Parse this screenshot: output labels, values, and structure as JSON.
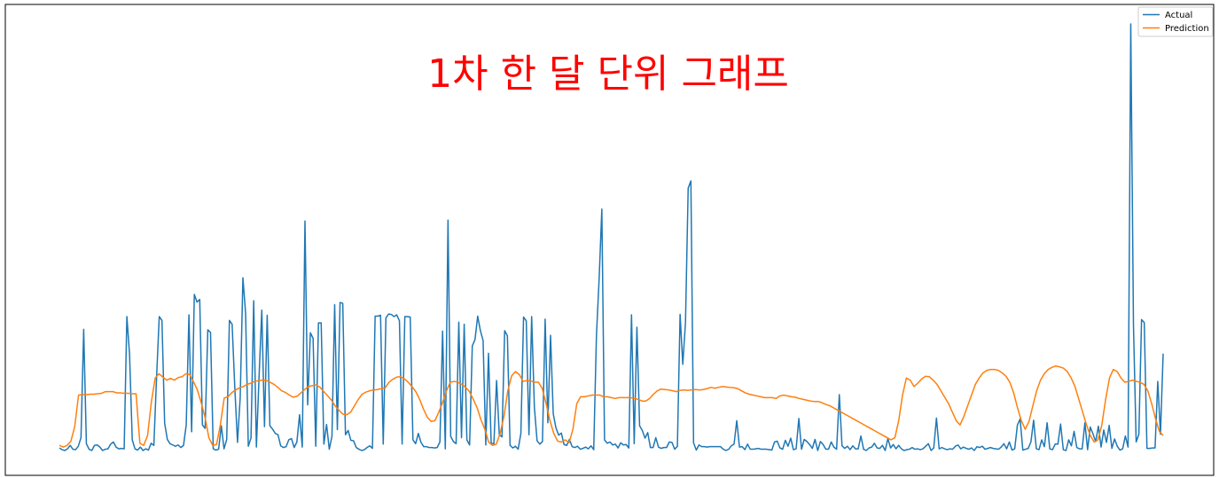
{
  "chart_data": {
    "type": "line",
    "title": "1차 한 달 단위 그래프",
    "xlabel": "",
    "ylabel": "",
    "grid": false,
    "legend_position": "top-right",
    "xlim": [
      0,
      320
    ],
    "ylim": [
      0,
      1.0
    ],
    "series": [
      {
        "name": "Actual",
        "color": "#1f77b4",
        "values": [
          0.006,
          0.002,
          0.0,
          0.004,
          0.012,
          0.003,
          0.002,
          0.01,
          0.03,
          0.284,
          0.016,
          0.003,
          0.0,
          0.012,
          0.013,
          0.008,
          0.0,
          0.003,
          0.004,
          0.015,
          0.02,
          0.008,
          0.004,
          0.005,
          0.004,
          0.314,
          0.225,
          0.025,
          0.004,
          0.001,
          0.008,
          0.0,
          0.004,
          0.001,
          0.017,
          0.012,
          0.17,
          0.314,
          0.305,
          0.064,
          0.026,
          0.016,
          0.013,
          0.01,
          0.013,
          0.007,
          0.012,
          0.06,
          0.318,
          0.044,
          0.366,
          0.348,
          0.354,
          0.06,
          0.052,
          0.283,
          0.277,
          0.004,
          0.001,
          0.003,
          0.058,
          0.004,
          0.026,
          0.305,
          0.296,
          0.147,
          0.019,
          0.124,
          0.405,
          0.321,
          0.01,
          0.029,
          0.351,
          0.008,
          0.175,
          0.329,
          0.056,
          0.317,
          0.058,
          0.05,
          0.04,
          0.037,
          0.011,
          0.007,
          0.009,
          0.025,
          0.028,
          0.007,
          0.02,
          0.084,
          0.008,
          0.538,
          0.107,
          0.276,
          0.263,
          0.01,
          0.299,
          0.299,
          0.015,
          0.061,
          0.003,
          0.033,
          0.342,
          0.049,
          0.347,
          0.345,
          0.037,
          0.047,
          0.024,
          0.023,
          0.007,
          0.003,
          0.0,
          0.002,
          0.007,
          0.011,
          0.005,
          0.315,
          0.315,
          0.317,
          0.015,
          0.311,
          0.32,
          0.319,
          0.314,
          0.318,
          0.304,
          0.015,
          0.314,
          0.314,
          0.313,
          0.025,
          0.016,
          0.04,
          0.019,
          0.009,
          0.009,
          0.007,
          0.007,
          0.006,
          0.007,
          0.02,
          0.28,
          0.004,
          0.54,
          0.033,
          0.021,
          0.016,
          0.301,
          0.03,
          0.296,
          0.025,
          0.013,
          0.245,
          0.26,
          0.315,
          0.281,
          0.258,
          0.013,
          0.228,
          0.017,
          0.016,
          0.164,
          0.037,
          0.032,
          0.281,
          0.269,
          0.012,
          0.006,
          0.01,
          0.003,
          0.04,
          0.313,
          0.304,
          0.037,
          0.314,
          0.102,
          0.023,
          0.015,
          0.021,
          0.308,
          0.065,
          0.27,
          0.086,
          0.053,
          0.036,
          0.041,
          0.014,
          0.012,
          0.026,
          0.009,
          0.007,
          0.01,
          0.003,
          0.005,
          0.008,
          0.004,
          0.011,
          0.002,
          0.269,
          0.402,
          0.566,
          0.025,
          0.017,
          0.02,
          0.013,
          0.015,
          0.006,
          0.018,
          0.013,
          0.014,
          0.006,
          0.318,
          0.016,
          0.289,
          0.058,
          0.047,
          0.029,
          0.042,
          0.007,
          0.007,
          0.03,
          0.008,
          0.005,
          0.007,
          0.007,
          0.02,
          0.019,
          0.003,
          0.01,
          0.319,
          0.202,
          0.3,
          0.615,
          0.632,
          0.018,
          0.001,
          0.013,
          0.009,
          0.009,
          0.008,
          0.009,
          0.009,
          0.009,
          0.009,
          0.009,
          0.003,
          0.0,
          0.003,
          0.011,
          0.015,
          0.07,
          0.008,
          0.009,
          0.002,
          0.015,
          0.003,
          0.003,
          0.004,
          0.005,
          0.003,
          0.003,
          0.003,
          0.002,
          0.001,
          0.02,
          0.022,
          0.006,
          0.003,
          0.024,
          0.01,
          0.029,
          0.002,
          0.004,
          0.075,
          0.003,
          0.026,
          0.021,
          0.014,
          0.005,
          0.026,
          0.0,
          0.021,
          0.014,
          0.003,
          0.003,
          0.02,
          0.008,
          0.003,
          0.131,
          0.011,
          0.005,
          0.01,
          0.002,
          0.011,
          0.004,
          0.004,
          0.034,
          0.003,
          0.0,
          0.006,
          0.008,
          0.017,
          0.006,
          0.005,
          0.012,
          0.0,
          0.028,
          0.006,
          0.014,
          0.004,
          0.012,
          0.004,
          0.0,
          0.002,
          0.003,
          0.007,
          0.003,
          0.004,
          0.002,
          0.004,
          0.01,
          0.016,
          0.0,
          0.006,
          0.076,
          0.004,
          0.007,
          0.004,
          0.002,
          0.004,
          0.003,
          0.01,
          0.013,
          0.004,
          0.008,
          0.005,
          0.003,
          0.006,
          0.0,
          0.009,
          0.007,
          0.01,
          0.003,
          0.005,
          0.007,
          0.005,
          0.004,
          0.003,
          0.008,
          0.016,
          0.004,
          0.02,
          0.001,
          0.004,
          0.06,
          0.074,
          0.001,
          0.003,
          0.005,
          0.02,
          0.071,
          0.004,
          0.002,
          0.025,
          0.009,
          0.065,
          0.004,
          0.002,
          0.015,
          0.015,
          0.062,
          0.002,
          0.0,
          0.025,
          0.011,
          0.045,
          0.007,
          0.004,
          0.004,
          0.065,
          0.002,
          0.055,
          0.039,
          0.021,
          0.057,
          0.008,
          0.048,
          0.019,
          0.059,
          0.005,
          0.027,
          0.01,
          0.001,
          0.004,
          0.034,
          0.008,
          1.0,
          0.294,
          0.02,
          0.038,
          0.307,
          0.3,
          0.005,
          0.005,
          0.006,
          0.006,
          0.162,
          0.038,
          0.227
        ]
      },
      {
        "name": "Prediction",
        "color": "#ff7f0e",
        "values": [
          0.012,
          0.008,
          0.012,
          0.022,
          0.056,
          0.13,
          0.131,
          0.131,
          0.132,
          0.132,
          0.133,
          0.134,
          0.138,
          0.138,
          0.138,
          0.135,
          0.135,
          0.134,
          0.134,
          0.133,
          0.133,
          0.017,
          0.012,
          0.035,
          0.114,
          0.17,
          0.18,
          0.172,
          0.165,
          0.169,
          0.165,
          0.171,
          0.173,
          0.18,
          0.178,
          0.161,
          0.142,
          0.112,
          0.078,
          0.03,
          0.012,
          0.014,
          0.06,
          0.123,
          0.126,
          0.136,
          0.142,
          0.147,
          0.15,
          0.155,
          0.158,
          0.162,
          0.164,
          0.165,
          0.164,
          0.16,
          0.155,
          0.148,
          0.14,
          0.136,
          0.13,
          0.125,
          0.127,
          0.135,
          0.143,
          0.15,
          0.152,
          0.154,
          0.148,
          0.138,
          0.128,
          0.118,
          0.104,
          0.094,
          0.085,
          0.084,
          0.09,
          0.105,
          0.12,
          0.132,
          0.137,
          0.14,
          0.142,
          0.143,
          0.145,
          0.147,
          0.16,
          0.167,
          0.172,
          0.173,
          0.168,
          0.16,
          0.15,
          0.138,
          0.12,
          0.097,
          0.078,
          0.068,
          0.07,
          0.09,
          0.113,
          0.14,
          0.16,
          0.162,
          0.16,
          0.155,
          0.148,
          0.138,
          0.12,
          0.1,
          0.072,
          0.05,
          0.02,
          0.012,
          0.015,
          0.04,
          0.08,
          0.14,
          0.175,
          0.185,
          0.178,
          0.162,
          0.164,
          0.163,
          0.16,
          0.16,
          0.145,
          0.11,
          0.07,
          0.04,
          0.022,
          0.02,
          0.025,
          0.018,
          0.05,
          0.11,
          0.126,
          0.126,
          0.128,
          0.13,
          0.13,
          0.13,
          0.126,
          0.126,
          0.124,
          0.122,
          0.124,
          0.124,
          0.124,
          0.124,
          0.122,
          0.12,
          0.116,
          0.116,
          0.122,
          0.132,
          0.14,
          0.144,
          0.143,
          0.142,
          0.14,
          0.138,
          0.141,
          0.142,
          0.141,
          0.142,
          0.143,
          0.142,
          0.143,
          0.145,
          0.148,
          0.146,
          0.148,
          0.15,
          0.149,
          0.148,
          0.147,
          0.145,
          0.14,
          0.135,
          0.132,
          0.13,
          0.128,
          0.126,
          0.124,
          0.124,
          0.124,
          0.122,
          0.128,
          0.13,
          0.128,
          0.126,
          0.125,
          0.122,
          0.12,
          0.118,
          0.116,
          0.115,
          0.115,
          0.112,
          0.108,
          0.105,
          0.1,
          0.095,
          0.09,
          0.085,
          0.08,
          0.075,
          0.07,
          0.065,
          0.06,
          0.055,
          0.05,
          0.045,
          0.04,
          0.035,
          0.03,
          0.025,
          0.03,
          0.07,
          0.13,
          0.17,
          0.165,
          0.15,
          0.158,
          0.168,
          0.174,
          0.173,
          0.165,
          0.155,
          0.14,
          0.125,
          0.11,
          0.09,
          0.07,
          0.06,
          0.08,
          0.105,
          0.13,
          0.155,
          0.17,
          0.182,
          0.188,
          0.19,
          0.19,
          0.188,
          0.182,
          0.174,
          0.16,
          0.135,
          0.1,
          0.07,
          0.05,
          0.068,
          0.105,
          0.14,
          0.165,
          0.18,
          0.19,
          0.195,
          0.198,
          0.196,
          0.193,
          0.185,
          0.17,
          0.15,
          0.12,
          0.09,
          0.06,
          0.035,
          0.02,
          0.025,
          0.06,
          0.12,
          0.17,
          0.19,
          0.185,
          0.17,
          0.16,
          0.162,
          0.165,
          0.162,
          0.16,
          0.155,
          0.14,
          0.11,
          0.075,
          0.045,
          0.035
        ]
      }
    ]
  }
}
